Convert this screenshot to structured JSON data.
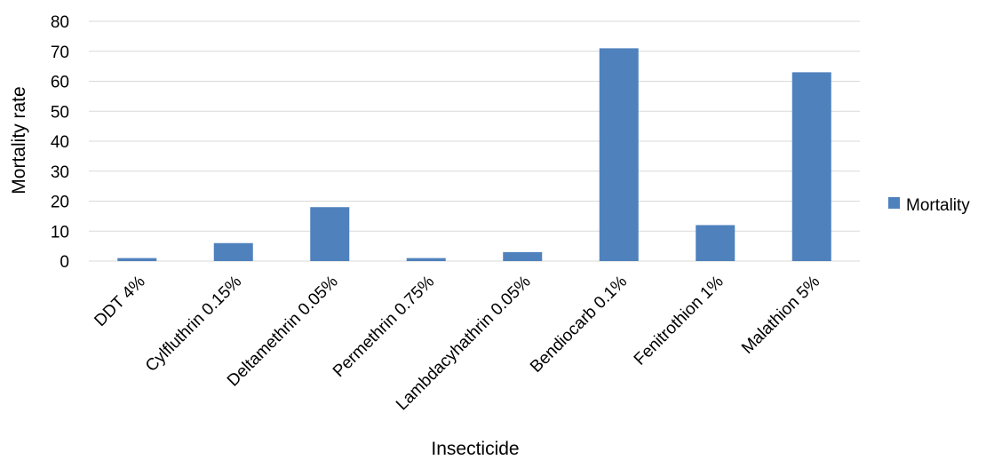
{
  "chart_data": {
    "type": "bar",
    "categories": [
      "DDT 4%",
      "Cylfluthrin 0.15%",
      "Deltamethrin 0.05%",
      "Permethrin 0.75%",
      "Lambdacyhathrin 0.05%",
      "Bendiocarb 0.1%",
      "Fenitrothion 1%",
      "Malathion 5%"
    ],
    "series": [
      {
        "name": "Mortality",
        "values": [
          1,
          6,
          18,
          1,
          3,
          71,
          12,
          63
        ],
        "color": "#4f81bd"
      }
    ],
    "title": "",
    "xlabel": "Insecticide",
    "ylabel": "Mortality rate",
    "ylim": [
      0,
      80
    ],
    "yticks": [
      0,
      10,
      20,
      30,
      40,
      50,
      60,
      70,
      80
    ],
    "grid": true,
    "legend_position": "right"
  }
}
